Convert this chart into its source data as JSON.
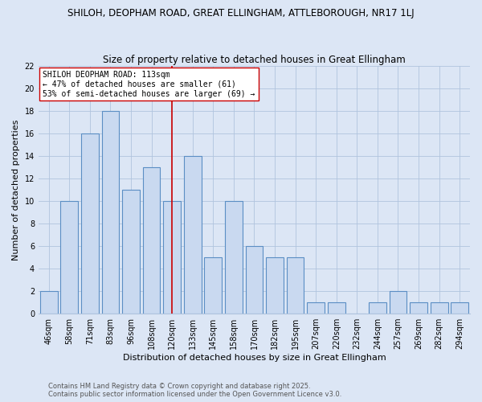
{
  "title": "SHILOH, DEOPHAM ROAD, GREAT ELLINGHAM, ATTLEBOROUGH, NR17 1LJ",
  "subtitle": "Size of property relative to detached houses in Great Ellingham",
  "xlabel": "Distribution of detached houses by size in Great Ellingham",
  "ylabel": "Number of detached properties",
  "categories": [
    "46sqm",
    "58sqm",
    "71sqm",
    "83sqm",
    "96sqm",
    "108sqm",
    "120sqm",
    "133sqm",
    "145sqm",
    "158sqm",
    "170sqm",
    "182sqm",
    "195sqm",
    "207sqm",
    "220sqm",
    "232sqm",
    "244sqm",
    "257sqm",
    "269sqm",
    "282sqm",
    "294sqm"
  ],
  "values": [
    2,
    10,
    16,
    18,
    11,
    13,
    10,
    14,
    5,
    10,
    6,
    5,
    5,
    1,
    1,
    0,
    1,
    2,
    1,
    1,
    1
  ],
  "bar_color": "#c9d9f0",
  "bar_edge_color": "#5b8ec4",
  "vline_color": "#cc0000",
  "annotation_text": "SHILOH DEOPHAM ROAD: 113sqm\n← 47% of detached houses are smaller (61)\n53% of semi-detached houses are larger (69) →",
  "annotation_box_color": "#ffffff",
  "annotation_box_edge_color": "#cc0000",
  "ylim": [
    0,
    22
  ],
  "yticks": [
    0,
    2,
    4,
    6,
    8,
    10,
    12,
    14,
    16,
    18,
    20,
    22
  ],
  "footnote": "Contains HM Land Registry data © Crown copyright and database right 2025.\nContains public sector information licensed under the Open Government Licence v3.0.",
  "bg_color": "#dce6f5",
  "title_fontsize": 8.5,
  "subtitle_fontsize": 8.5,
  "axis_label_fontsize": 8.0,
  "tick_fontsize": 7.0,
  "annotation_fontsize": 7.0,
  "footnote_fontsize": 6.0
}
